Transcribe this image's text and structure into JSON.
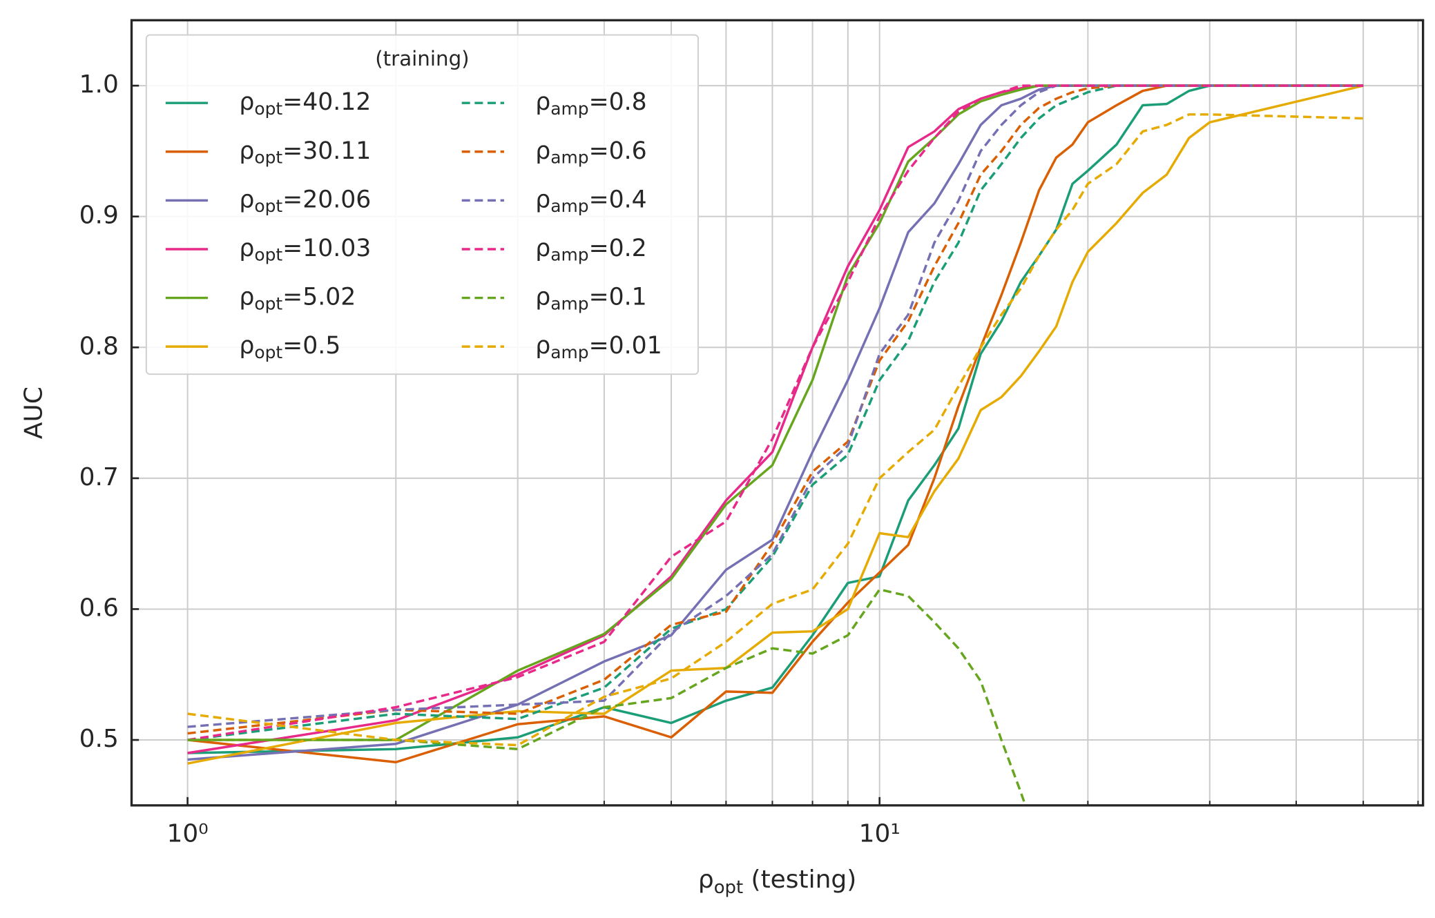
{
  "chart_data": {
    "type": "line",
    "xlabel": "ρopt (testing)",
    "ylabel": "AUC",
    "xscale": "log",
    "grid": true,
    "x": [
      1,
      2,
      3,
      4,
      5,
      6,
      7,
      8,
      9,
      10,
      11,
      12,
      13,
      14,
      15,
      16,
      17,
      18,
      19,
      20,
      22,
      24,
      26,
      28,
      30,
      50
    ],
    "xlim": [
      0.83,
      61
    ],
    "ylim": [
      0.45,
      1.05
    ],
    "xticks": [
      {
        "value": 1,
        "label": "10⁰"
      },
      {
        "value": 10,
        "label": "10¹"
      }
    ],
    "xminor_ticks": [
      2,
      3,
      4,
      5,
      6,
      7,
      8,
      9,
      20,
      30,
      40,
      50,
      60
    ],
    "yticks": [
      0.5,
      0.6,
      0.7,
      0.8,
      0.9,
      {
        "value": 1,
        "label": "1.0"
      }
    ],
    "legend": {
      "title": "(training)",
      "loc": "upper left",
      "ncol": 2
    },
    "series": [
      {
        "name": "ρopt=40.12",
        "color": "#1b9e77",
        "linestyle": "solid",
        "values": [
          0.49,
          0.493,
          0.502,
          0.525,
          0.513,
          0.53,
          0.54,
          0.58,
          0.62,
          0.625,
          0.683,
          0.71,
          0.738,
          0.795,
          0.82,
          0.85,
          0.87,
          0.89,
          0.925,
          0.935,
          0.955,
          0.985,
          0.986,
          0.996,
          1,
          1
        ]
      },
      {
        "name": "ρopt=30.11",
        "color": "#d95f02",
        "linestyle": "solid",
        "values": [
          0.5,
          0.483,
          0.512,
          0.518,
          0.502,
          0.537,
          0.536,
          0.575,
          0.605,
          0.628,
          0.649,
          0.7,
          0.755,
          0.8,
          0.84,
          0.88,
          0.92,
          0.945,
          0.955,
          0.972,
          0.985,
          0.996,
          1,
          1,
          1,
          1
        ]
      },
      {
        "name": "ρopt=20.06",
        "color": "#7570b3",
        "linestyle": "solid",
        "values": [
          0.485,
          0.497,
          0.527,
          0.56,
          0.58,
          0.63,
          0.653,
          0.72,
          0.775,
          0.83,
          0.888,
          0.91,
          0.94,
          0.97,
          0.985,
          0.99,
          0.997,
          1,
          1,
          1,
          1,
          1,
          1,
          1,
          1,
          1
        ]
      },
      {
        "name": "ρopt=10.03",
        "color": "#e7298a",
        "linestyle": "solid",
        "values": [
          0.49,
          0.515,
          0.55,
          0.58,
          0.625,
          0.683,
          0.72,
          0.8,
          0.862,
          0.905,
          0.953,
          0.965,
          0.982,
          0.99,
          0.995,
          0.998,
          1,
          1,
          1,
          1,
          1,
          1,
          1,
          1,
          1,
          1
        ]
      },
      {
        "name": "ρopt=5.02",
        "color": "#66a61e",
        "linestyle": "solid",
        "values": [
          0.5,
          0.5,
          0.553,
          0.581,
          0.623,
          0.68,
          0.71,
          0.775,
          0.855,
          0.895,
          0.942,
          0.96,
          0.978,
          0.988,
          0.993,
          0.997,
          1,
          1,
          1,
          1,
          1,
          1,
          1,
          1,
          1,
          1
        ]
      },
      {
        "name": "ρopt=0.5",
        "color": "#e6ab02",
        "linestyle": "solid",
        "values": [
          0.482,
          0.513,
          0.522,
          0.52,
          0.553,
          0.555,
          0.582,
          0.583,
          0.6,
          0.658,
          0.655,
          0.69,
          0.715,
          0.752,
          0.762,
          0.778,
          0.797,
          0.816,
          0.85,
          0.873,
          0.895,
          0.918,
          0.932,
          0.96,
          0.972,
          1
        ]
      },
      {
        "name": "ρamp=0.8",
        "color": "#1b9e77",
        "linestyle": "dashed",
        "values": [
          0.5,
          0.52,
          0.516,
          0.54,
          0.585,
          0.6,
          0.64,
          0.695,
          0.718,
          0.775,
          0.805,
          0.85,
          0.88,
          0.92,
          0.94,
          0.96,
          0.975,
          0.985,
          0.99,
          0.995,
          1,
          1,
          1,
          1,
          1,
          1
        ]
      },
      {
        "name": "ρamp=0.6",
        "color": "#d95f02",
        "linestyle": "dashed",
        "values": [
          0.505,
          0.523,
          0.52,
          0.546,
          0.588,
          0.598,
          0.65,
          0.705,
          0.728,
          0.79,
          0.82,
          0.862,
          0.895,
          0.932,
          0.95,
          0.97,
          0.983,
          0.99,
          0.995,
          0.998,
          1,
          1,
          1,
          1,
          1,
          1
        ]
      },
      {
        "name": "ρamp=0.4",
        "color": "#7570b3",
        "linestyle": "dashed",
        "values": [
          0.51,
          0.523,
          0.527,
          0.53,
          0.582,
          0.61,
          0.642,
          0.7,
          0.725,
          0.795,
          0.825,
          0.88,
          0.912,
          0.95,
          0.97,
          0.985,
          0.995,
          1,
          1,
          1,
          1,
          1,
          1,
          1,
          1,
          1
        ]
      },
      {
        "name": "ρamp=0.2",
        "color": "#e7298a",
        "linestyle": "dashed",
        "values": [
          0.5,
          0.525,
          0.548,
          0.575,
          0.64,
          0.667,
          0.73,
          0.8,
          0.85,
          0.9,
          0.935,
          0.96,
          0.98,
          0.99,
          0.995,
          1,
          1,
          1,
          1,
          1,
          1,
          1,
          1,
          1,
          1,
          1
        ]
      },
      {
        "name": "ρamp=0.1",
        "color": "#66a61e",
        "linestyle": "dashed",
        "values": [
          0.5,
          0.5,
          0.493,
          0.525,
          0.532,
          0.555,
          0.57,
          0.566,
          0.58,
          0.615,
          0.61,
          0.59,
          0.57,
          0.545,
          0.5,
          0.46,
          0.42,
          null,
          null,
          null,
          null,
          null,
          null,
          null,
          null,
          null
        ]
      },
      {
        "name": "ρamp=0.01",
        "color": "#e6ab02",
        "linestyle": "dashed",
        "values": [
          0.52,
          0.5,
          0.496,
          0.533,
          0.547,
          0.575,
          0.604,
          0.615,
          0.65,
          0.7,
          0.72,
          0.737,
          0.77,
          0.8,
          0.825,
          0.845,
          0.87,
          0.89,
          0.905,
          0.925,
          0.94,
          0.965,
          0.97,
          0.978,
          0.978,
          0.975
        ]
      }
    ]
  }
}
